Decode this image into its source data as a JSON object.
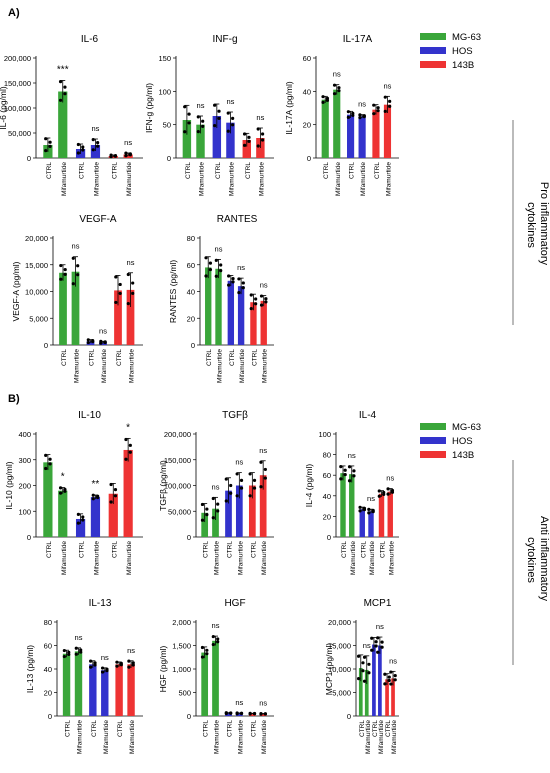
{
  "figure": {
    "panel_a_label": "A)",
    "panel_b_label": "B)",
    "panel_a_section": "Pro inflammatory cytokines",
    "panel_b_section": "Anti inflammatory cytokines"
  },
  "legend": {
    "items": [
      {
        "label": "MG-63",
        "color": "#3aa63a"
      },
      {
        "label": "HOS",
        "color": "#3333cc"
      },
      {
        "label": "143B",
        "color": "#ee3333"
      }
    ]
  },
  "chart_data": [
    {
      "type": "bar",
      "panel": "A",
      "title": "IL-6",
      "ylabel": "IL-6 (pg/ml)",
      "ylim": [
        0,
        200000
      ],
      "yticks": [
        "0",
        "50,000",
        "100,000",
        "150,000",
        "200,000"
      ],
      "ytick_values": [
        0,
        50000,
        100000,
        150000,
        200000
      ],
      "categories": [
        "CTRL",
        "Mifamurtide",
        "CTRL",
        "Mifamurtide",
        "CTRL",
        "Mifamurtide"
      ],
      "groups": [
        "MG-63",
        "HOS",
        "143B"
      ],
      "values": [
        26000,
        133000,
        18000,
        26000,
        4000,
        7000
      ],
      "errors": [
        14000,
        22000,
        10000,
        12000,
        2000,
        3000
      ],
      "significance": [
        "***",
        "ns",
        "ns"
      ]
    },
    {
      "type": "bar",
      "panel": "A",
      "title": "INF-g",
      "ylabel": "IFN-g (pg/ml)",
      "ylim": [
        0,
        150
      ],
      "yticks": [
        "0",
        "50",
        "100",
        "150"
      ],
      "ytick_values": [
        0,
        50,
        100,
        150
      ],
      "categories": [
        "CTRL",
        "Mifamurtide",
        "CTRL",
        "Mifamurtide",
        "CTRL",
        "Mifamurtide"
      ],
      "groups": [
        "MG-63",
        "HOS",
        "143B"
      ],
      "values": [
        57,
        50,
        63,
        53,
        27,
        30
      ],
      "errors": [
        22,
        13,
        18,
        16,
        10,
        15
      ],
      "significance": [
        "ns",
        "ns",
        "ns"
      ]
    },
    {
      "type": "bar",
      "panel": "A",
      "title": "IL-17A",
      "ylabel": "IL-17A (pg/ml)",
      "ylim": [
        0,
        60
      ],
      "yticks": [
        "0",
        "20",
        "40",
        "60"
      ],
      "ytick_values": [
        0,
        20,
        40,
        60
      ],
      "categories": [
        "CTRL",
        "Mifamurtide",
        "CTRL",
        "Mifamurtide",
        "CTRL",
        "Mifamurtide"
      ],
      "groups": [
        "MG-63",
        "HOS",
        "143B"
      ],
      "values": [
        35,
        41,
        26,
        25,
        29,
        32
      ],
      "errors": [
        2,
        3,
        2,
        1,
        3,
        5
      ],
      "significance": [
        "ns",
        "ns",
        "ns"
      ]
    },
    {
      "type": "bar",
      "panel": "A",
      "title": "VEGF-A",
      "ylabel": "VEGF-A (pg/ml)",
      "ylim": [
        0,
        20000
      ],
      "yticks": [
        "0",
        "5,000",
        "10,000",
        "15,000",
        "20,000"
      ],
      "ytick_values": [
        0,
        5000,
        10000,
        15000,
        20000
      ],
      "categories": [
        "CTRL",
        "Mifamurtide",
        "CTRL",
        "Mifamurtide",
        "CTRL",
        "Mifamurtide"
      ],
      "groups": [
        "MG-63",
        "HOS",
        "143B"
      ],
      "values": [
        13500,
        13700,
        700,
        500,
        10200,
        10300
      ],
      "errors": [
        1500,
        2800,
        300,
        200,
        2800,
        3200
      ],
      "significance": [
        "ns",
        "ns",
        "ns"
      ]
    },
    {
      "type": "bar",
      "panel": "A",
      "title": "RANTES",
      "ylabel": "RANTES (pg/ml)",
      "ylim": [
        0,
        80
      ],
      "yticks": [
        "0",
        "20",
        "40",
        "60",
        "80"
      ],
      "ytick_values": [
        0,
        20,
        40,
        60,
        80
      ],
      "categories": [
        "CTRL",
        "Mifamurtide",
        "CTRL",
        "Mifamurtide",
        "CTRL",
        "Mifamurtide"
      ],
      "groups": [
        "MG-63",
        "HOS",
        "143B"
      ],
      "values": [
        58,
        57,
        48,
        44,
        32,
        33
      ],
      "errors": [
        8,
        7,
        4,
        6,
        6,
        4
      ],
      "significance": [
        "ns",
        "ns",
        "ns"
      ]
    },
    {
      "type": "bar",
      "panel": "B",
      "title": "IL-10",
      "ylabel": "IL-10 (pg/ml)",
      "ylim": [
        0,
        400
      ],
      "yticks": [
        "0",
        "100",
        "200",
        "300",
        "400"
      ],
      "ytick_values": [
        0,
        100,
        200,
        300,
        400
      ],
      "categories": [
        "CTRL",
        "Mifamurtide",
        "CTRL",
        "Mifamurtide",
        "CTRL",
        "Mifamurtide"
      ],
      "groups": [
        "MG-63",
        "HOS",
        "143B"
      ],
      "values": [
        290,
        180,
        70,
        155,
        168,
        338
      ],
      "errors": [
        30,
        12,
        20,
        8,
        40,
        45
      ],
      "significance": [
        "*",
        "**",
        "*"
      ]
    },
    {
      "type": "bar",
      "panel": "B",
      "title": "TGFβ",
      "ylabel": "TGFβ (pg/ml)",
      "ylim": [
        0,
        200000
      ],
      "yticks": [
        "0",
        "50,000",
        "100,000",
        "150,000",
        "200,000"
      ],
      "ytick_values": [
        0,
        50000,
        100000,
        150000,
        200000
      ],
      "categories": [
        "CTRL",
        "Mifamurtide",
        "CTRL",
        "Mifamurtide",
        "CTRL",
        "Mifamurtide"
      ],
      "groups": [
        "MG-63",
        "HOS",
        "143B"
      ],
      "values": [
        47000,
        55000,
        90000,
        100000,
        100000,
        120000
      ],
      "errors": [
        18000,
        22000,
        25000,
        25000,
        25000,
        28000
      ],
      "significance": [
        "ns",
        "ns",
        "ns"
      ]
    },
    {
      "type": "bar",
      "panel": "B",
      "title": "IL-4",
      "ylabel": "IL-4 (pg/ml)",
      "ylim": [
        0,
        100
      ],
      "yticks": [
        "0",
        "20",
        "40",
        "60",
        "80",
        "100"
      ],
      "ytick_values": [
        0,
        20,
        40,
        60,
        80,
        100
      ],
      "categories": [
        "CTRL",
        "Mifamurtide",
        "CTRL",
        "Mifamurtide",
        "CTRL",
        "Mifamurtide"
      ],
      "groups": [
        "MG-63",
        "HOS",
        "143B"
      ],
      "values": [
        62,
        61,
        27,
        25,
        42,
        44
      ],
      "errors": [
        7,
        8,
        2,
        2,
        3,
        3
      ],
      "significance": [
        "ns",
        "ns",
        "ns"
      ]
    },
    {
      "type": "bar",
      "panel": "B",
      "title": "IL-13",
      "ylabel": "IL-13 (pg/ml)",
      "ylim": [
        0,
        80
      ],
      "yticks": [
        "0",
        "20",
        "40",
        "60",
        "80"
      ],
      "ytick_values": [
        0,
        20,
        40,
        60,
        80
      ],
      "categories": [
        "CTRL",
        "Mifamurtide",
        "CTRL",
        "Mifamurtide",
        "CTRL",
        "Mifamurtide"
      ],
      "groups": [
        "MG-63",
        "HOS",
        "143B"
      ],
      "values": [
        53,
        55,
        44,
        39,
        44,
        44
      ],
      "errors": [
        3,
        3,
        3,
        2,
        2,
        3
      ],
      "significance": [
        "ns",
        "ns",
        "ns"
      ]
    },
    {
      "type": "bar",
      "panel": "B",
      "title": "HGF",
      "ylabel": "HGF (pg/ml)",
      "ylim": [
        0,
        2000
      ],
      "yticks": [
        "0",
        "500",
        "1,000",
        "1,500",
        "2,000"
      ],
      "ytick_values": [
        0,
        500,
        1000,
        1500,
        2000
      ],
      "categories": [
        "CTRL",
        "Mifamurtide",
        "CTRL",
        "Mifamurtide",
        "CTRL",
        "Mifamurtide"
      ],
      "groups": [
        "MG-63",
        "HOS",
        "143B"
      ],
      "values": [
        1350,
        1600,
        60,
        55,
        50,
        45
      ],
      "errors": [
        120,
        100,
        10,
        10,
        8,
        8
      ],
      "significance": [
        "ns",
        "ns",
        "ns"
      ]
    },
    {
      "type": "bar",
      "panel": "B",
      "title": "MCP1",
      "ylabel": "MCP1 (pg/ml)",
      "ylim": [
        0,
        20000
      ],
      "yticks": [
        "0",
        "5,000",
        "10,000",
        "15,000",
        "20,000"
      ],
      "ytick_values": [
        0,
        5000,
        10000,
        15000,
        20000
      ],
      "categories": [
        "CTRL",
        "Mifamurtide",
        "CTRL",
        "Mifamurtide",
        "CTRL",
        "Mifamurtide"
      ],
      "groups": [
        "MG-63",
        "HOS",
        "143B"
      ],
      "values": [
        10200,
        9800,
        15200,
        15000,
        7800,
        8000
      ],
      "errors": [
        2800,
        3000,
        1500,
        1800,
        1200,
        1500
      ],
      "significance": [
        "ns",
        "ns",
        "ns"
      ]
    }
  ]
}
